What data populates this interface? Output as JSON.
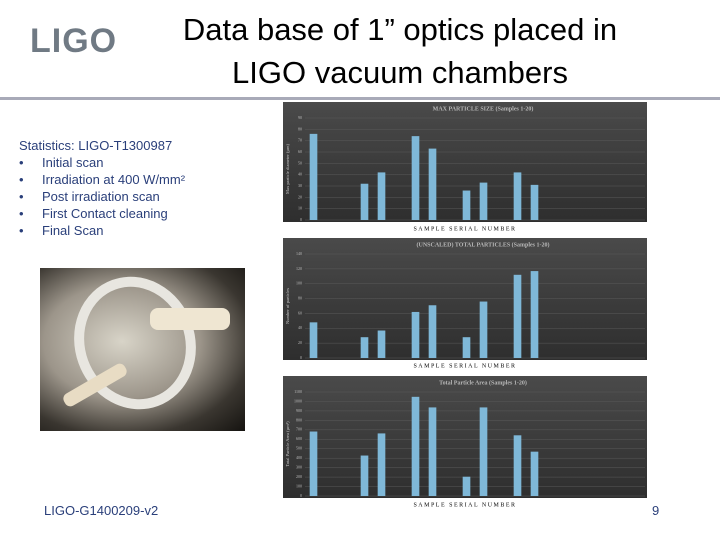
{
  "header": {
    "logo": "LIGO",
    "title_line1": "Data base of 1” optics placed in",
    "title_line2": "LIGO vacuum chambers"
  },
  "body": {
    "stats_title": "Statistics: LIGO-T1300987",
    "bullets": [
      "Initial scan",
      "Irradiation at 400 W/mm²",
      "Post irradiation scan",
      "First Contact cleaning",
      "Final Scan"
    ]
  },
  "footer": {
    "doc_id": "LIGO-G1400209-v2",
    "page": "9"
  },
  "chart_data": [
    {
      "type": "bar",
      "title": "MAX PARTICLE SIZE (Samples 1-20)",
      "x_label": "SAMPLE SERIAL NUMBER",
      "y_label": "Max particle diameter (µm)",
      "categories": [
        null,
        null,
        null,
        null,
        null,
        null,
        null,
        null,
        null,
        null,
        null,
        null,
        null,
        null,
        null,
        null,
        null,
        null,
        null,
        null
      ],
      "values": [
        76,
        null,
        null,
        32,
        42,
        null,
        74,
        63,
        null,
        26,
        33,
        null,
        42,
        31,
        null,
        null,
        null,
        null,
        null,
        null
      ],
      "color": "#7fb8d8",
      "ylim": [
        0,
        90
      ],
      "yticks": [
        0,
        10,
        20,
        30,
        40,
        50,
        60,
        70,
        80,
        90
      ],
      "grid": true
    },
    {
      "type": "bar",
      "title": "(UNSCALED) TOTAL PARTICLES (Samples 1-20)",
      "x_label": "SAMPLE SERIAL NUMBER",
      "y_label": "Number of particles",
      "categories": [
        null,
        null,
        null,
        null,
        null,
        null,
        null,
        null,
        null,
        null,
        null,
        null,
        null,
        null,
        null,
        null,
        null,
        null,
        null,
        null
      ],
      "values": [
        48,
        null,
        null,
        28,
        37,
        null,
        62,
        71,
        null,
        28,
        76,
        null,
        112,
        117,
        null,
        null,
        null,
        null,
        null,
        null
      ],
      "color": "#7fb8d8",
      "ylim": [
        0,
        140
      ],
      "yticks": [
        0,
        20,
        40,
        60,
        80,
        100,
        120,
        140
      ],
      "grid": true
    },
    {
      "type": "bar",
      "title": "Total Particle Area (Samples 1-20)",
      "x_label": "SAMPLE SERIAL NUMBER",
      "y_label": "Total Particle Area (µm²)",
      "categories": [
        null,
        null,
        null,
        null,
        null,
        null,
        null,
        null,
        null,
        null,
        null,
        null,
        null,
        null,
        null,
        null,
        null,
        null,
        null,
        null
      ],
      "values": [
        682,
        null,
        null,
        428,
        662,
        null,
        1049,
        937,
        null,
        204,
        937,
        null,
        642,
        469,
        null,
        null,
        null,
        null,
        null,
        null
      ],
      "color": "#7fb8d8",
      "ylim": [
        0,
        1100
      ],
      "yticks": [
        0,
        100,
        200,
        300,
        400,
        500,
        600,
        700,
        800,
        900,
        1000,
        1100
      ],
      "grid": true
    }
  ]
}
